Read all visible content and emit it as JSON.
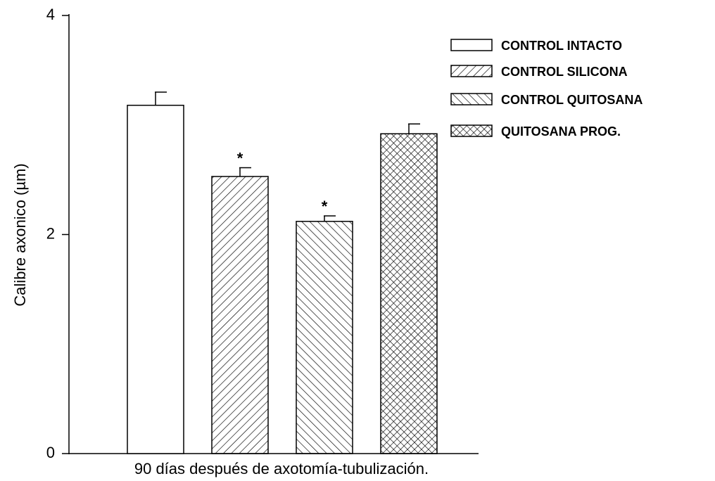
{
  "chart_data": {
    "type": "bar",
    "ylabel": "Calibre axonico (µm)",
    "xlabel": "90 días después de axotomía-tubulización.",
    "categories": [
      null
    ],
    "ylim": [
      0,
      4
    ],
    "yticks": [
      0,
      2,
      4
    ],
    "series": [
      {
        "name": "CONTROL INTACTO",
        "color": "#000000",
        "pattern": "none",
        "values": [
          3.18
        ],
        "errors": [
          0.12
        ]
      },
      {
        "name": "CONTROL SILICONA",
        "color": "#000000",
        "pattern": "forward-hatch",
        "values": [
          2.53
        ],
        "errors": [
          0.08
        ],
        "annotation": "*"
      },
      {
        "name": "CONTROL QUITOSANA",
        "color": "#000000",
        "pattern": "back-hatch",
        "values": [
          2.12
        ],
        "errors": [
          0.05
        ],
        "annotation": "*"
      },
      {
        "name": "QUITOSANA PROG.",
        "color": "#000000",
        "pattern": "crosshatch",
        "values": [
          2.92
        ],
        "errors": [
          0.09
        ]
      }
    ],
    "legend": "upper right"
  }
}
